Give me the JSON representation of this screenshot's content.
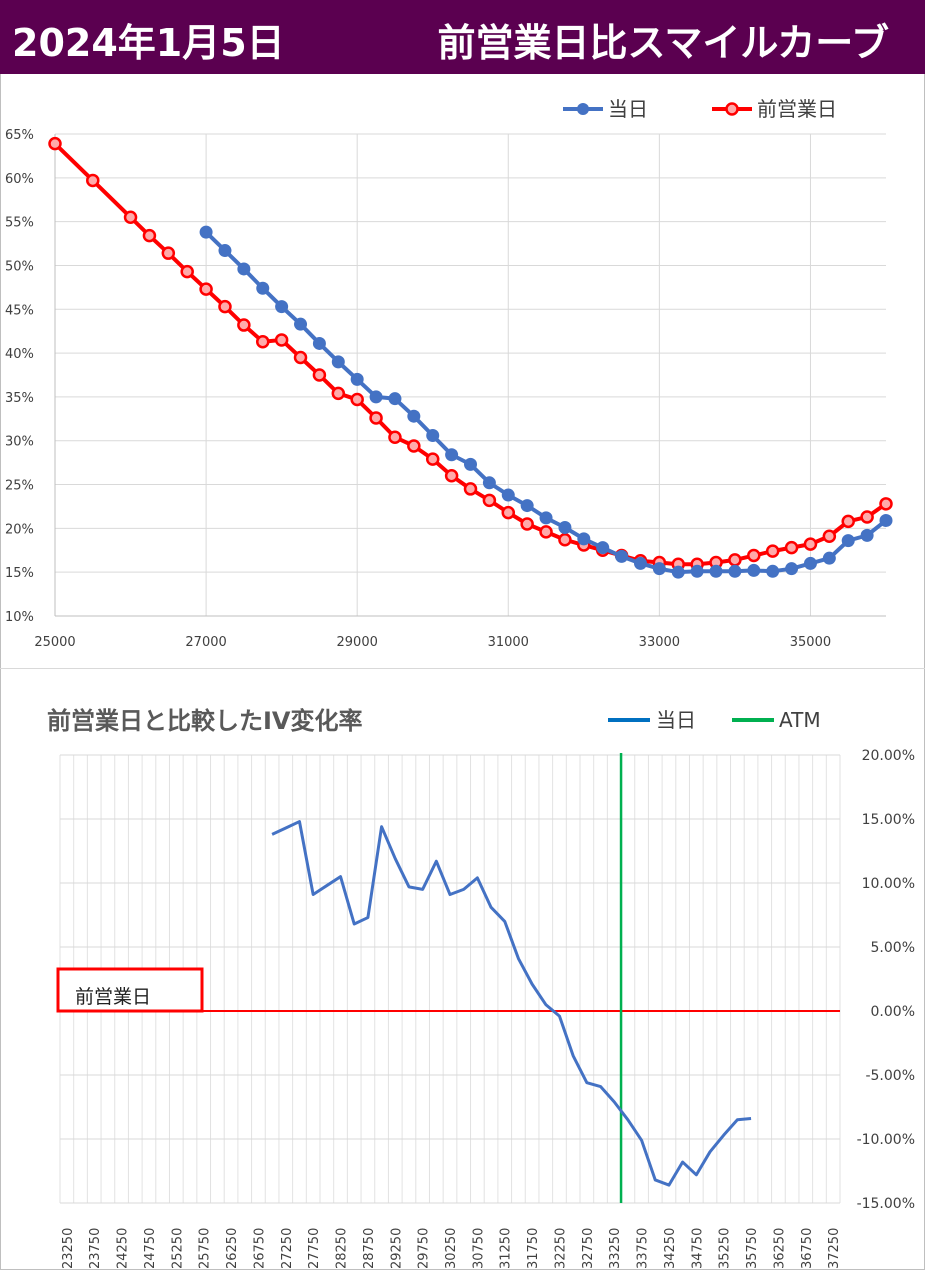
{
  "header": {
    "date": "2024年1月5日",
    "title": "前営業日比スマイルカーブ"
  },
  "colors": {
    "header_bg": "#5b0050",
    "today": "#4472c4",
    "prev": "#ff0000",
    "change": "#4472c4",
    "atm": "#00b050",
    "zero": "#ff0000"
  },
  "chart_data": [
    {
      "type": "line",
      "title": "",
      "xlim": [
        25000,
        36000
      ],
      "ylim": [
        10,
        65
      ],
      "x_ticks": [
        "25000",
        "27000",
        "29000",
        "31000",
        "33000",
        "35000"
      ],
      "y_ticks": [
        "10%",
        "15%",
        "20%",
        "25%",
        "30%",
        "35%",
        "40%",
        "45%",
        "50%",
        "55%",
        "60%",
        "65%"
      ],
      "legend_position": "top-right",
      "grid": true,
      "series": [
        {
          "name": "当日",
          "x": [
            27000,
            27250,
            27500,
            27750,
            28000,
            28250,
            28500,
            28750,
            29000,
            29250,
            29500,
            29750,
            30000,
            30250,
            30500,
            30750,
            31000,
            31250,
            31500,
            31750,
            32000,
            32250,
            32500,
            32750,
            33000,
            33250,
            33500,
            33750,
            34000,
            34250,
            34500,
            34750,
            35000,
            35250,
            35500,
            35750,
            36000
          ],
          "values": [
            53.8,
            51.7,
            49.6,
            47.4,
            45.3,
            43.3,
            41.1,
            39.0,
            37.0,
            35.0,
            34.8,
            32.8,
            30.6,
            28.4,
            27.3,
            25.2,
            23.8,
            22.6,
            21.2,
            20.1,
            18.8,
            17.8,
            16.8,
            16.0,
            15.4,
            15.0,
            15.1,
            15.1,
            15.1,
            15.2,
            15.1,
            15.4,
            16.0,
            16.6,
            18.6,
            19.2,
            20.9
          ]
        },
        {
          "name": "前営業日",
          "x": [
            25000,
            25500,
            26000,
            26250,
            26500,
            26750,
            27000,
            27250,
            27500,
            27750,
            28000,
            28250,
            28500,
            28750,
            29000,
            29250,
            29500,
            29750,
            30000,
            30250,
            30500,
            30750,
            31000,
            31250,
            31500,
            31750,
            32000,
            32250,
            32500,
            32750,
            33000,
            33250,
            33500,
            33750,
            34000,
            34250,
            34500,
            34750,
            35000,
            35250,
            35500,
            35750,
            36000
          ],
          "values": [
            63.9,
            59.7,
            55.5,
            53.4,
            51.4,
            49.3,
            47.3,
            45.3,
            43.2,
            41.3,
            41.5,
            39.5,
            37.5,
            35.4,
            34.7,
            32.6,
            30.4,
            29.4,
            27.9,
            26.0,
            24.5,
            23.2,
            21.8,
            20.5,
            19.6,
            18.7,
            18.1,
            17.5,
            16.9,
            16.3,
            16.1,
            15.9,
            15.9,
            16.1,
            16.4,
            16.9,
            17.4,
            17.8,
            18.2,
            19.1,
            20.8,
            21.3,
            22.8
          ]
        }
      ]
    },
    {
      "type": "line",
      "title": "前営業日と比較したIV変化率",
      "y_ticks": [
        "20.00%",
        "15.00%",
        "10.00%",
        "5.00%",
        "0.00%",
        "-5.00%",
        "-10.00%",
        "-15.00%"
      ],
      "ylim": [
        -15,
        20
      ],
      "categories": [
        "23250",
        "23750",
        "24250",
        "24750",
        "25250",
        "25750",
        "26250",
        "26750",
        "27250",
        "27750",
        "28250",
        "28750",
        "29250",
        "29750",
        "30250",
        "30750",
        "31250",
        "31750",
        "32250",
        "32750",
        "33250",
        "33750",
        "34250",
        "34750",
        "35250",
        "35750",
        "36250",
        "36750",
        "37250"
      ],
      "category_start": 23250,
      "category_step": 250,
      "category_count": 57,
      "legend_position": "top-right",
      "zero_line_label": "前営業日",
      "atm_strike": 33375,
      "series": [
        {
          "name": "当日",
          "x": [
            27000,
            27250,
            27500,
            27750,
            28000,
            28250,
            28500,
            28750,
            29000,
            29250,
            29500,
            29750,
            30000,
            30250,
            30500,
            30750,
            31000,
            31250,
            31500,
            31750,
            32000,
            32250,
            32500,
            32750,
            33000,
            33250,
            33500,
            33750,
            34000,
            34250,
            34500,
            34750,
            35000,
            35250,
            35500,
            35750
          ],
          "values": [
            13.8,
            14.3,
            14.8,
            9.1,
            9.8,
            10.5,
            6.8,
            7.3,
            14.4,
            11.9,
            9.7,
            9.5,
            11.7,
            9.1,
            9.5,
            10.4,
            8.1,
            7.0,
            4.1,
            2.1,
            0.5,
            -0.4,
            -3.5,
            -5.6,
            -5.9,
            -7.1,
            -8.5,
            -10.1,
            -13.2,
            -13.6,
            -11.8,
            -12.8,
            -11.0,
            -9.7,
            -8.5,
            -8.4
          ]
        },
        {
          "name": "ATM"
        }
      ]
    }
  ]
}
